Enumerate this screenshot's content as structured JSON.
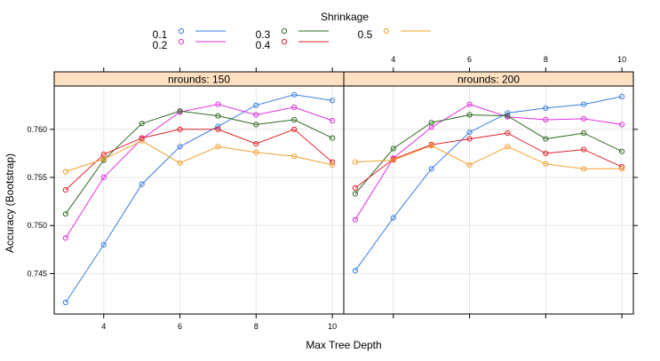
{
  "chart_data": {
    "type": "line",
    "xlabel": "Max Tree Depth",
    "ylabel": "Accuracy (Bootstrap)",
    "x": [
      3,
      4,
      5,
      6,
      7,
      8,
      9,
      10
    ],
    "x_ticks": [
      4,
      6,
      8,
      10
    ],
    "y_ticks": [
      0.745,
      0.75,
      0.755,
      0.76
    ],
    "xlim": [
      2.7,
      10.3
    ],
    "ylim": [
      0.7408,
      0.7645
    ],
    "grid": true,
    "legend": {
      "title": "Shrinkage",
      "placement": "top"
    },
    "series_colors": {
      "0.1": "#3a7ee0",
      "0.2": "#e02fe0",
      "0.3": "#2e6b22",
      "0.4": "#e0202a",
      "0.5": "#f2a02e"
    },
    "strip_color": "#ffe0c0",
    "panels": [
      {
        "label": "nrounds: 150",
        "series": [
          {
            "name": "0.1",
            "values": [
              0.742,
              0.748,
              0.7543,
              0.7582,
              0.7603,
              0.7625,
              0.7636,
              0.763
            ]
          },
          {
            "name": "0.2",
            "values": [
              0.7487,
              0.755,
              0.759,
              0.7618,
              0.7626,
              0.7615,
              0.7623,
              0.7609
            ]
          },
          {
            "name": "0.3",
            "values": [
              0.7512,
              0.7568,
              0.7606,
              0.7619,
              0.7614,
              0.7605,
              0.761,
              0.7591
            ]
          },
          {
            "name": "0.4",
            "values": [
              0.7537,
              0.7574,
              0.7591,
              0.76,
              0.76,
              0.7585,
              0.76,
              0.7566
            ]
          },
          {
            "name": "0.5",
            "values": [
              0.7556,
              0.7569,
              0.7588,
              0.7565,
              0.7582,
              0.7576,
              0.7572,
              0.7563
            ]
          }
        ]
      },
      {
        "label": "nrounds: 200",
        "series": [
          {
            "name": "0.1",
            "values": [
              0.7453,
              0.7508,
              0.7559,
              0.7597,
              0.7617,
              0.7622,
              0.7626,
              0.7634
            ]
          },
          {
            "name": "0.2",
            "values": [
              0.7506,
              0.757,
              0.7602,
              0.7626,
              0.7613,
              0.761,
              0.7611,
              0.7605
            ]
          },
          {
            "name": "0.3",
            "values": [
              0.7533,
              0.758,
              0.7607,
              0.7615,
              0.7614,
              0.759,
              0.7596,
              0.7577
            ]
          },
          {
            "name": "0.4",
            "values": [
              0.7539,
              0.7569,
              0.7584,
              0.759,
              0.7596,
              0.7575,
              0.7579,
              0.7561
            ]
          },
          {
            "name": "0.5",
            "values": [
              0.7566,
              0.7568,
              0.7583,
              0.7563,
              0.7582,
              0.7564,
              0.7559,
              0.7559
            ]
          }
        ]
      }
    ]
  }
}
